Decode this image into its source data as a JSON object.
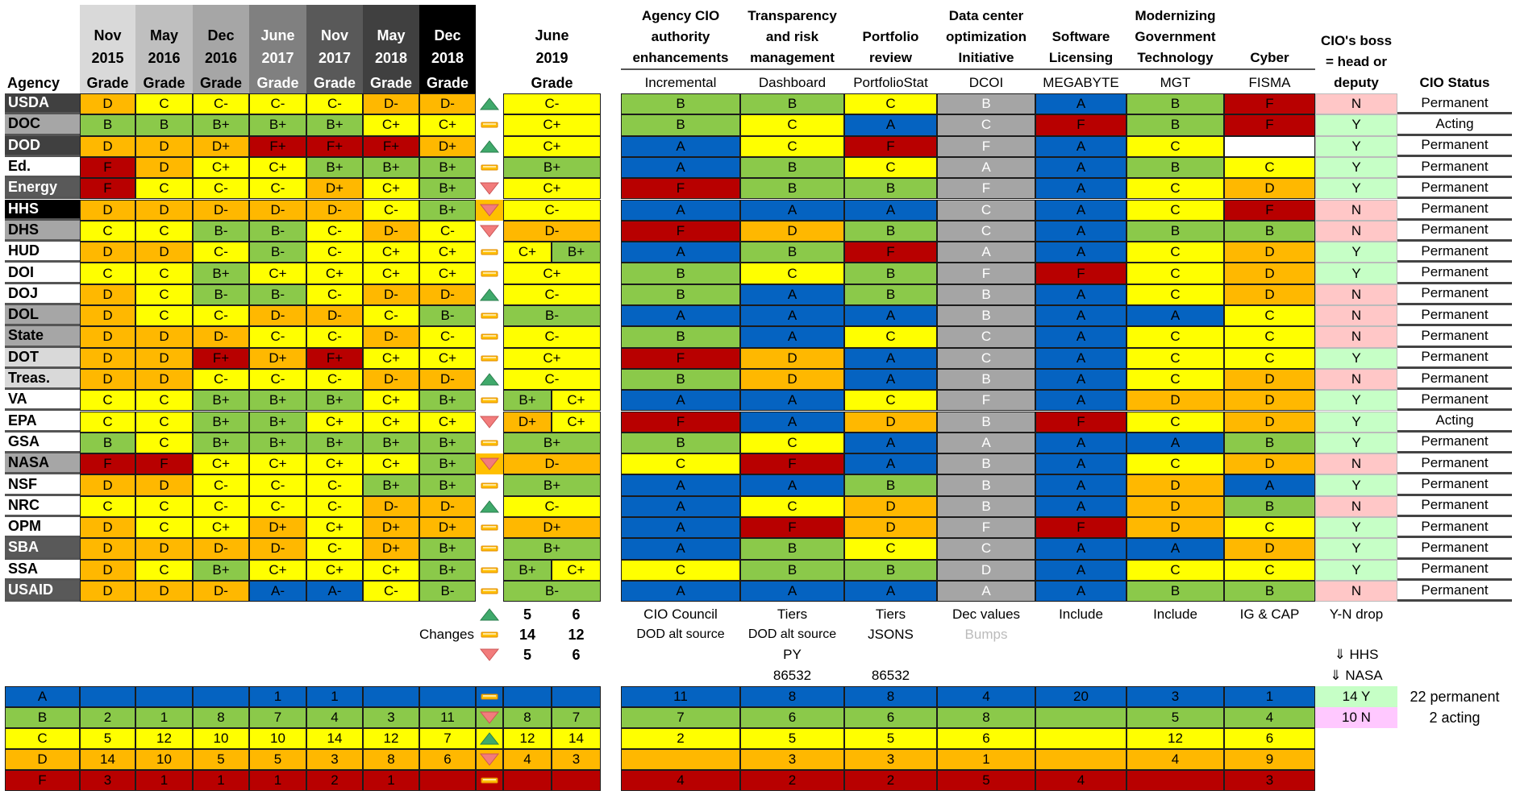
{
  "palette": {
    "A": "#0563C1",
    "B": "#8BC94A",
    "C": "#FFFF00",
    "D": "#FFB800",
    "F": "#B80000",
    "blank": "#FFFFFF",
    "dcoi": "#A5A5A5",
    "boss_Y": "#C6FFC6",
    "boss_N": "#FFC7C7",
    "no_box": "#FFC8FF",
    "trend_up": "#3FA96B",
    "trend_flat": "#FFC000",
    "trend_down": "#F27C7C"
  },
  "left_header": {
    "agency": "Agency",
    "periods": [
      {
        "month": "Nov",
        "year": "2015",
        "label": "Grade",
        "bg": "#D9D9D9",
        "fg": "#000000"
      },
      {
        "month": "May",
        "year": "2016",
        "label": "Grade",
        "bg": "#BFBFBF",
        "fg": "#000000"
      },
      {
        "month": "Dec",
        "year": "2016",
        "label": "Grade",
        "bg": "#A6A6A6",
        "fg": "#000000"
      },
      {
        "month": "June",
        "year": "2017",
        "label": "Grade",
        "bg": "#808080",
        "fg": "#FFFFFF"
      },
      {
        "month": "Nov",
        "year": "2017",
        "label": "Grade",
        "bg": "#595959",
        "fg": "#FFFFFF"
      },
      {
        "month": "May",
        "year": "2018",
        "label": "Grade",
        "bg": "#404040",
        "fg": "#FFFFFF"
      },
      {
        "month": "Dec",
        "year": "2018",
        "label": "Grade",
        "bg": "#000000",
        "fg": "#FFFFFF"
      }
    ],
    "current": {
      "month": "June",
      "year": "2019",
      "label": "Grade"
    }
  },
  "right_header": {
    "components": [
      {
        "title": [
          "Agency CIO",
          "authority",
          "enhancements"
        ],
        "sub": "Incremental"
      },
      {
        "title": [
          "Transparency",
          "and risk",
          "management"
        ],
        "sub": "Dashboard"
      },
      {
        "title": [
          "Portfolio",
          "review"
        ],
        "sub": "PortfolioStat"
      },
      {
        "title": [
          "Data center",
          "optimization",
          "Initiative"
        ],
        "sub": "DCOI"
      },
      {
        "title": [
          "Software",
          "Licensing"
        ],
        "sub": "MEGABYTE"
      },
      {
        "title": [
          "Modernizing",
          "Government",
          "Technology"
        ],
        "sub": "MGT"
      },
      {
        "title": [
          "Cyber"
        ],
        "sub": "FISMA"
      }
    ],
    "boss": [
      "CIO's boss",
      "= head or",
      "deputy"
    ],
    "status": "CIO Status"
  },
  "agencies": [
    {
      "name": "USDA",
      "bg": "#404040",
      "fg": "#FFFFFF",
      "grades": [
        "D",
        "C",
        "C-",
        "C-",
        "C-",
        "D-",
        "D-"
      ],
      "trend": "up",
      "june2019": [
        "C-"
      ],
      "components": [
        "B",
        "B",
        "C",
        "B",
        "A",
        "B",
        "F"
      ],
      "boss": "N",
      "status": "Permanent"
    },
    {
      "name": "DOC",
      "bg": "#A6A6A6",
      "fg": "#000000",
      "grades": [
        "B",
        "B",
        "B+",
        "B+",
        "B+",
        "C+",
        "C+"
      ],
      "trend": "flat",
      "june2019": [
        "C+"
      ],
      "components": [
        "B",
        "C",
        "A",
        "C",
        "F",
        "B",
        "F"
      ],
      "boss": "Y",
      "status": "Acting"
    },
    {
      "name": "DOD",
      "bg": "#404040",
      "fg": "#FFFFFF",
      "grades": [
        "D",
        "D",
        "D+",
        "F+",
        "F+",
        "F+",
        "D+"
      ],
      "trend": "up",
      "june2019": [
        "C+"
      ],
      "components": [
        "A",
        "C",
        "F",
        "F",
        "A",
        "C",
        ""
      ],
      "boss": "Y",
      "status": "Permanent"
    },
    {
      "name": "Ed.",
      "bg": "#FFFFFF",
      "fg": "#000000",
      "grades": [
        "F",
        "D",
        "C+",
        "C+",
        "B+",
        "B+",
        "B+"
      ],
      "trend": "flat",
      "june2019": [
        "B+"
      ],
      "components": [
        "A",
        "B",
        "C",
        "A",
        "A",
        "B",
        "C"
      ],
      "boss": "Y",
      "status": "Permanent"
    },
    {
      "name": "Energy",
      "bg": "#595959",
      "fg": "#FFFFFF",
      "grades": [
        "F",
        "C",
        "C-",
        "C-",
        "D+",
        "C+",
        "B+"
      ],
      "trend": "down",
      "june2019": [
        "C+"
      ],
      "components": [
        "F",
        "B",
        "B",
        "F",
        "A",
        "C",
        "D"
      ],
      "boss": "Y",
      "status": "Permanent"
    },
    {
      "name": "HHS",
      "bg": "#000000",
      "fg": "#FFFFFF",
      "grades": [
        "D",
        "D",
        "D-",
        "D-",
        "D-",
        "C-",
        "B+"
      ],
      "trend": "down",
      "highlight": true,
      "june2019": [
        "C-"
      ],
      "components": [
        "A",
        "A",
        "A",
        "C",
        "A",
        "C",
        "F"
      ],
      "boss": "N",
      "status": "Permanent"
    },
    {
      "name": "DHS",
      "bg": "#A6A6A6",
      "fg": "#000000",
      "grades": [
        "C",
        "C",
        "B-",
        "B-",
        "C-",
        "D-",
        "C-"
      ],
      "trend": "down",
      "june2019": [
        "D-"
      ],
      "components": [
        "F",
        "D",
        "B",
        "C",
        "A",
        "B",
        "B"
      ],
      "boss": "N",
      "status": "Permanent"
    },
    {
      "name": "HUD",
      "bg": "#FFFFFF",
      "fg": "#000000",
      "grades": [
        "D",
        "D",
        "C-",
        "B-",
        "C-",
        "C+",
        "C+"
      ],
      "trend": "flat",
      "june2019": [
        "C+",
        "B+"
      ],
      "components": [
        "A",
        "B",
        "F",
        "A",
        "A",
        "C",
        "D"
      ],
      "boss": "Y",
      "status": "Permanent"
    },
    {
      "name": "DOI",
      "bg": "#FFFFFF",
      "fg": "#000000",
      "grades": [
        "C",
        "C",
        "B+",
        "C+",
        "C+",
        "C+",
        "C+"
      ],
      "trend": "flat",
      "june2019": [
        "C+"
      ],
      "components": [
        "B",
        "C",
        "B",
        "F",
        "F",
        "C",
        "D"
      ],
      "boss": "Y",
      "status": "Permanent"
    },
    {
      "name": "DOJ",
      "bg": "#FFFFFF",
      "fg": "#000000",
      "grades": [
        "D",
        "C",
        "B-",
        "B-",
        "C-",
        "D-",
        "D-"
      ],
      "trend": "up",
      "june2019": [
        "C-"
      ],
      "components": [
        "B",
        "A",
        "B",
        "B",
        "A",
        "C",
        "D"
      ],
      "boss": "N",
      "status": "Permanent"
    },
    {
      "name": "DOL",
      "bg": "#A6A6A6",
      "fg": "#000000",
      "grades": [
        "D",
        "C",
        "C-",
        "D-",
        "D-",
        "C-",
        "B-"
      ],
      "trend": "flat",
      "june2019": [
        "B-"
      ],
      "components": [
        "A",
        "A",
        "A",
        "B",
        "A",
        "A",
        "C"
      ],
      "boss": "N",
      "status": "Permanent"
    },
    {
      "name": "State",
      "bg": "#A6A6A6",
      "fg": "#000000",
      "grades": [
        "D",
        "D",
        "D-",
        "C-",
        "C-",
        "D-",
        "C-"
      ],
      "trend": "flat",
      "june2019": [
        "C-"
      ],
      "components": [
        "B",
        "A",
        "C",
        "C",
        "A",
        "C",
        "C"
      ],
      "boss": "N",
      "status": "Permanent"
    },
    {
      "name": "DOT",
      "bg": "#D9D9D9",
      "fg": "#000000",
      "grades": [
        "D",
        "D",
        "F+",
        "D+",
        "F+",
        "C+",
        "C+"
      ],
      "trend": "flat",
      "june2019": [
        "C+"
      ],
      "components": [
        "F",
        "D",
        "A",
        "C",
        "A",
        "C",
        "C"
      ],
      "boss": "Y",
      "status": "Permanent"
    },
    {
      "name": "Treas.",
      "bg": "#D9D9D9",
      "fg": "#000000",
      "grades": [
        "D",
        "D",
        "C-",
        "C-",
        "C-",
        "D-",
        "D-"
      ],
      "trend": "up",
      "june2019": [
        "C-"
      ],
      "components": [
        "B",
        "D",
        "A",
        "B",
        "A",
        "C",
        "D"
      ],
      "boss": "N",
      "status": "Permanent"
    },
    {
      "name": "VA",
      "bg": "#FFFFFF",
      "fg": "#000000",
      "grades": [
        "C",
        "C",
        "B+",
        "B+",
        "B+",
        "C+",
        "B+"
      ],
      "trend": "flat",
      "june2019": [
        "B+",
        "C+"
      ],
      "components": [
        "A",
        "A",
        "C",
        "F",
        "A",
        "D",
        "D"
      ],
      "boss": "Y",
      "status": "Permanent"
    },
    {
      "name": "EPA",
      "bg": "#FFFFFF",
      "fg": "#000000",
      "grades": [
        "C",
        "C",
        "B+",
        "B+",
        "C+",
        "C+",
        "C+"
      ],
      "trend": "down",
      "june2019": [
        "D+",
        "C+"
      ],
      "components": [
        "F",
        "A",
        "D",
        "B",
        "F",
        "C",
        "D"
      ],
      "boss": "Y",
      "status": "Acting"
    },
    {
      "name": "GSA",
      "bg": "#FFFFFF",
      "fg": "#000000",
      "grades": [
        "B",
        "C",
        "B+",
        "B+",
        "B+",
        "B+",
        "B+"
      ],
      "trend": "flat",
      "june2019": [
        "B+"
      ],
      "components": [
        "B",
        "C",
        "A",
        "A",
        "A",
        "A",
        "B"
      ],
      "boss": "Y",
      "status": "Permanent"
    },
    {
      "name": "NASA",
      "bg": "#A6A6A6",
      "fg": "#000000",
      "grades": [
        "F",
        "F",
        "C+",
        "C+",
        "C+",
        "C+",
        "B+"
      ],
      "trend": "down",
      "highlight": true,
      "june2019": [
        "D-"
      ],
      "components": [
        "C",
        "F",
        "A",
        "B",
        "A",
        "C",
        "D"
      ],
      "boss": "N",
      "status": "Permanent"
    },
    {
      "name": "NSF",
      "bg": "#FFFFFF",
      "fg": "#000000",
      "grades": [
        "D",
        "D",
        "C-",
        "C-",
        "C-",
        "B+",
        "B+"
      ],
      "trend": "flat",
      "june2019": [
        "B+"
      ],
      "components": [
        "A",
        "A",
        "B",
        "B",
        "A",
        "D",
        "A"
      ],
      "boss": "Y",
      "status": "Permanent"
    },
    {
      "name": "NRC",
      "bg": "#FFFFFF",
      "fg": "#000000",
      "grades": [
        "C",
        "C",
        "C-",
        "C-",
        "C-",
        "D-",
        "D-"
      ],
      "trend": "up",
      "june2019": [
        "C-"
      ],
      "components": [
        "A",
        "C",
        "D",
        "B",
        "A",
        "D",
        "B"
      ],
      "boss": "N",
      "status": "Permanent"
    },
    {
      "name": "OPM",
      "bg": "#FFFFFF",
      "fg": "#000000",
      "grades": [
        "D",
        "C",
        "C+",
        "D+",
        "C+",
        "D+",
        "D+"
      ],
      "trend": "flat",
      "june2019": [
        "D+"
      ],
      "components": [
        "A",
        "F",
        "D",
        "F",
        "F",
        "D",
        "C"
      ],
      "boss": "Y",
      "status": "Permanent"
    },
    {
      "name": "SBA",
      "bg": "#595959",
      "fg": "#FFFFFF",
      "grades": [
        "D",
        "D",
        "D-",
        "D-",
        "C-",
        "D+",
        "B+"
      ],
      "trend": "flat",
      "june2019": [
        "B+"
      ],
      "components": [
        "A",
        "B",
        "C",
        "C",
        "A",
        "A",
        "D"
      ],
      "boss": "Y",
      "status": "Permanent"
    },
    {
      "name": "SSA",
      "bg": "#FFFFFF",
      "fg": "#000000",
      "grades": [
        "D",
        "C",
        "B+",
        "C+",
        "C+",
        "C+",
        "B+"
      ],
      "trend": "flat",
      "june2019": [
        "B+",
        "C+"
      ],
      "components": [
        "C",
        "B",
        "B",
        "D",
        "A",
        "C",
        "C"
      ],
      "boss": "Y",
      "status": "Permanent"
    },
    {
      "name": "USAID",
      "bg": "#595959",
      "fg": "#FFFFFF",
      "grades": [
        "D",
        "D",
        "D-",
        "A-",
        "A-",
        "C-",
        "B-"
      ],
      "trend": "flat",
      "june2019": [
        "B-"
      ],
      "components": [
        "A",
        "A",
        "A",
        "A",
        "A",
        "B",
        "B"
      ],
      "boss": "N",
      "status": "Permanent"
    }
  ],
  "changes": {
    "label": "Changes",
    "rows": [
      {
        "trend": "up",
        "values": [
          "5",
          "6"
        ]
      },
      {
        "trend": "flat",
        "values": [
          "14",
          "12"
        ]
      },
      {
        "trend": "down",
        "values": [
          "5",
          "6"
        ]
      }
    ]
  },
  "component_notes": [
    [
      "CIO Council",
      "DOD alt source",
      "",
      ""
    ],
    [
      "Tiers",
      "DOD alt source",
      "PY",
      "86532"
    ],
    [
      "Tiers",
      "JSONS",
      "",
      "86532"
    ],
    [
      "Dec values",
      "Bumps",
      "",
      ""
    ],
    [
      "Include",
      "",
      "",
      ""
    ],
    [
      "Include",
      "",
      "",
      ""
    ],
    [
      "IG & CAP",
      "",
      "",
      ""
    ],
    [
      "Y-N drop",
      "",
      "⇓ HHS",
      "⇓ NASA"
    ]
  ],
  "grade_summary": [
    {
      "grade": "A",
      "counts": [
        "",
        "",
        "",
        "1",
        "1",
        "",
        ""
      ],
      "trend": "flat",
      "june2019": [
        "",
        ""
      ],
      "components": [
        "11",
        "8",
        "8",
        "4",
        "20",
        "3",
        "1"
      ]
    },
    {
      "grade": "B",
      "counts": [
        "2",
        "1",
        "8",
        "7",
        "4",
        "3",
        "11"
      ],
      "trend": "down",
      "june2019": [
        "8",
        "7"
      ],
      "components": [
        "7",
        "6",
        "6",
        "8",
        "",
        "5",
        "4"
      ]
    },
    {
      "grade": "C",
      "counts": [
        "5",
        "12",
        "10",
        "10",
        "14",
        "12",
        "7"
      ],
      "trend": "up",
      "june2019": [
        "12",
        "14"
      ],
      "components": [
        "2",
        "5",
        "5",
        "6",
        "",
        "12",
        "6"
      ]
    },
    {
      "grade": "D",
      "counts": [
        "14",
        "10",
        "5",
        "5",
        "3",
        "8",
        "6"
      ],
      "trend": "down",
      "june2019": [
        "4",
        "3"
      ],
      "components": [
        "",
        "3",
        "3",
        "1",
        "",
        "4",
        "9"
      ]
    },
    {
      "grade": "F",
      "counts": [
        "3",
        "1",
        "1",
        "1",
        "2",
        "1",
        ""
      ],
      "trend": "flat",
      "june2019": [
        "",
        ""
      ],
      "components": [
        "4",
        "2",
        "2",
        "5",
        "4",
        "",
        "3"
      ]
    }
  ],
  "boss_summary": [
    {
      "text": "14 Y",
      "note": "22 permanent"
    },
    {
      "text": "10 N",
      "note": "2 acting"
    }
  ]
}
